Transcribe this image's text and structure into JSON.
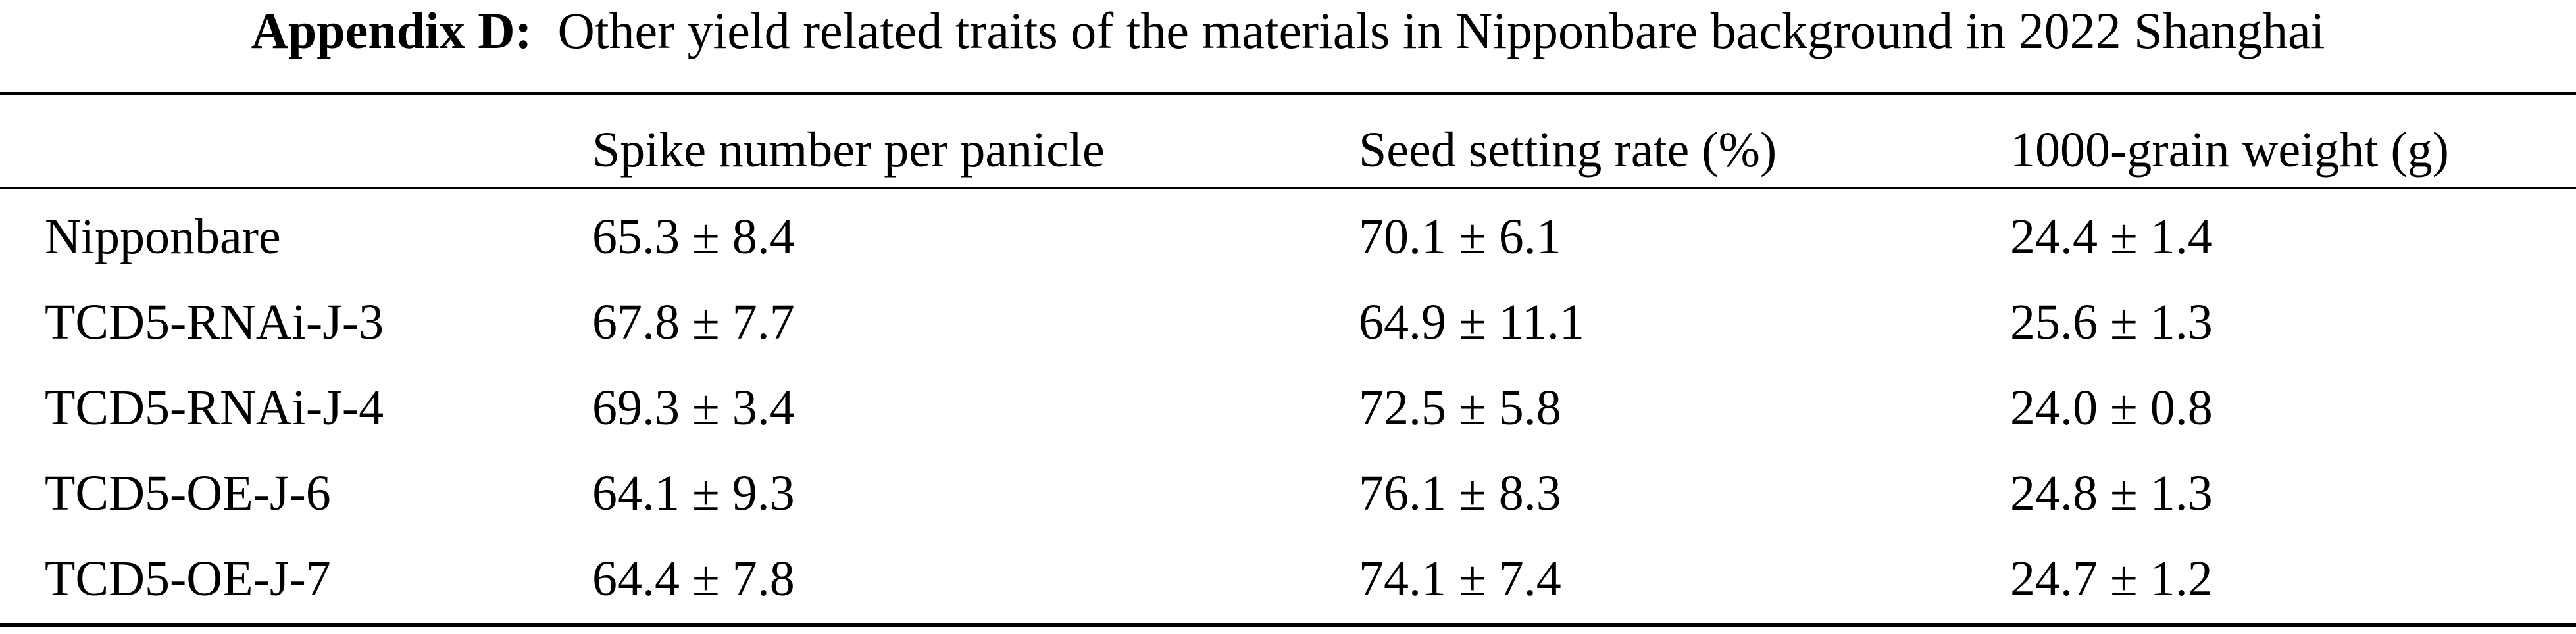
{
  "title": {
    "label": "Appendix D:",
    "text": "Other yield related traits of the materials in Nipponbare background in 2022 Shanghai"
  },
  "table": {
    "header": [
      "Spike number per panicle",
      "Seed setting rate (%)",
      "1000-grain weight (g)"
    ],
    "rows": [
      [
        "Nipponbare",
        "65.3 ± 8.4",
        "70.1 ± 6.1",
        "24.4 ± 1.4"
      ],
      [
        "TCD5-RNAi-J-3",
        "67.8 ± 7.7",
        "64.9 ± 11.1",
        "25.6 ± 1.3"
      ],
      [
        "TCD5-RNAi-J-4",
        "69.3 ± 3.4",
        "72.5 ± 5.8",
        "24.0 ± 0.8"
      ],
      [
        "TCD5-OE-J-6",
        "64.1 ± 9.3",
        "76.1 ± 8.3",
        "24.8 ± 1.3"
      ],
      [
        "TCD5-OE-J-7",
        "64.4 ± 7.8",
        "74.1 ± 7.4",
        "24.7 ± 1.2"
      ]
    ]
  }
}
